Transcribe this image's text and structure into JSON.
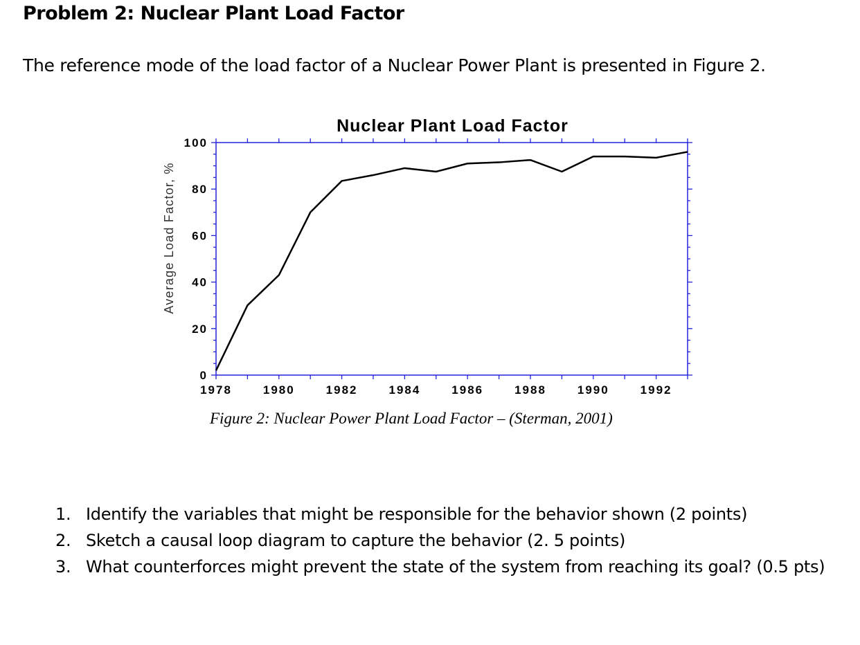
{
  "document": {
    "title": "Problem 2: Nuclear Plant Load Factor",
    "intro": "The reference mode of the load factor of a Nuclear Power Plant is presented in Figure 2.",
    "caption": "Figure 2: Nuclear Power Plant Load Factor – (Sterman, 2001)",
    "questions": [
      {
        "num": "1.",
        "text": "Identify the variables that might be responsible for the behavior shown  (2 points)"
      },
      {
        "num": "2.",
        "text": "Sketch a causal loop diagram to capture the behavior (2. 5 points)"
      },
      {
        "num": "3.",
        "text": "What counterforces might prevent the state of the system from reaching its goal? (0.5 pts)"
      }
    ]
  },
  "chart_data": {
    "type": "line",
    "title": "Nuclear Plant Load Factor",
    "xlabel": "",
    "ylabel": "Average Load Factor, %",
    "xlim": [
      1978,
      1993
    ],
    "ylim": [
      0,
      100
    ],
    "xticks": [
      "1978",
      "1980",
      "1982",
      "1984",
      "1986",
      "1988",
      "1990",
      "1992"
    ],
    "yticks": [
      "0",
      "20",
      "40",
      "60",
      "80",
      "100"
    ],
    "grid": false,
    "axis_color": "#2222dd",
    "line_color": "#000000",
    "x": [
      1978,
      1979,
      1980,
      1981,
      1982,
      1983,
      1984,
      1985,
      1986,
      1987,
      1988,
      1989,
      1990,
      1991,
      1992,
      1993
    ],
    "y": [
      2,
      30,
      43,
      70,
      83.5,
      86,
      89,
      87.5,
      91,
      91.5,
      92.5,
      87.5,
      94,
      94,
      93.5,
      96
    ]
  }
}
